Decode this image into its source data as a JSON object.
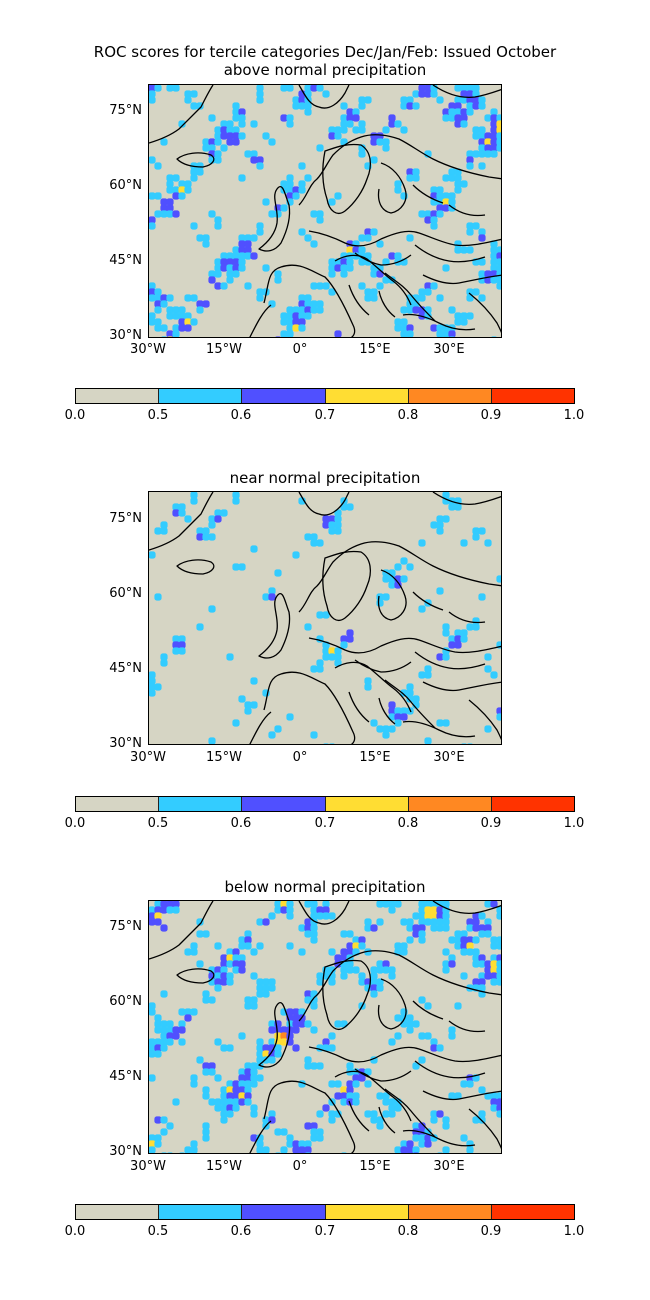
{
  "figure": {
    "title": "ROC scores for tercile categories Dec/Jan/Feb: Issued October"
  },
  "panels": [
    {
      "subtitle": "above normal precipitation",
      "variable": "above"
    },
    {
      "subtitle": "near normal precipitation",
      "variable": "near"
    },
    {
      "subtitle": "below normal precipitation",
      "variable": "below"
    }
  ],
  "axes": {
    "lat_ticks": [
      "75°N",
      "60°N",
      "45°N",
      "30°N"
    ],
    "lon_ticks": [
      "30°W",
      "15°W",
      "0°",
      "15°E",
      "30°E"
    ]
  },
  "colorbar": {
    "ticks": [
      "0.0",
      "0.5",
      "0.6",
      "0.7",
      "0.8",
      "0.9",
      "1.0"
    ],
    "colors": [
      "#d6d5c4",
      "#33ccff",
      "#5050ff",
      "#ffdd33",
      "#ff8822",
      "#ff3300"
    ]
  }
}
